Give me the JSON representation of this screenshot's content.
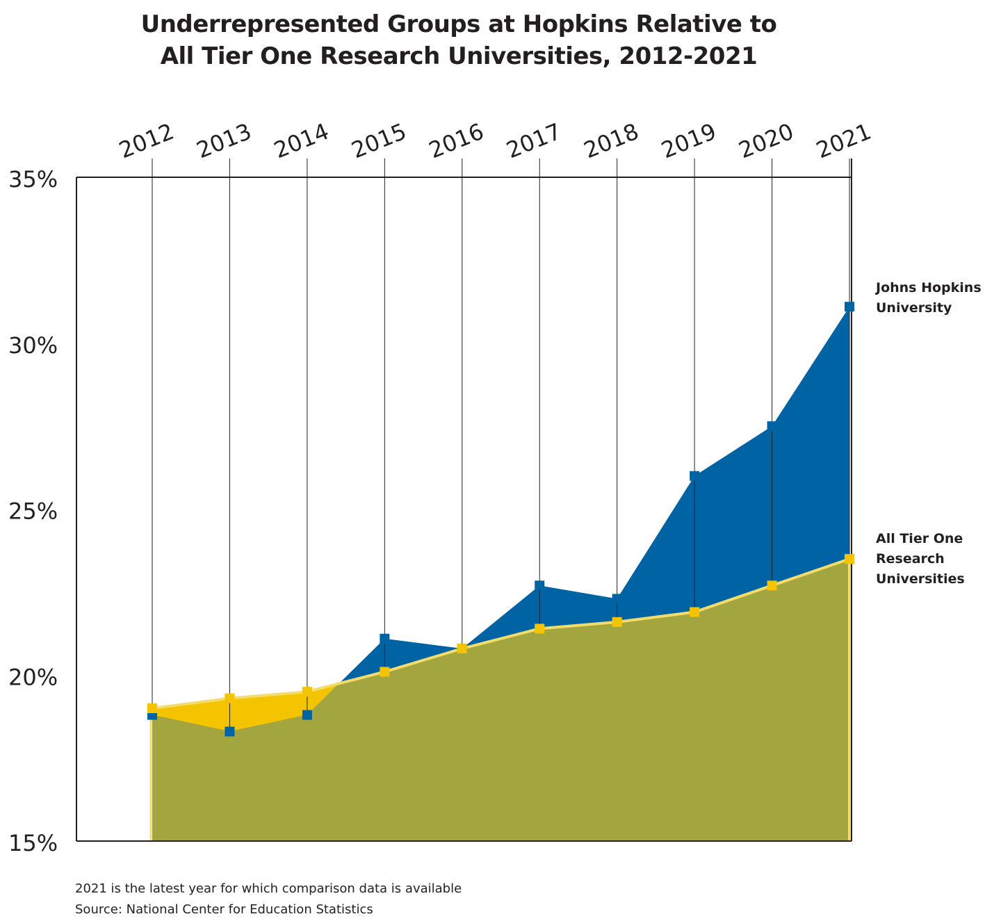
{
  "chart_data": {
    "type": "area",
    "title": "Underrepresented Groups at Hopkins Relative to All Tier One Research Universities, 2012-2021",
    "title_lines": [
      "Underrepresented Groups at Hopkins Relative to",
      "All Tier One Research Universities, 2012-2021"
    ],
    "x": [
      "2012",
      "2013",
      "2014",
      "2015",
      "2016",
      "2017",
      "2018",
      "2019",
      "2020",
      "2021"
    ],
    "y_ticks": [
      "15%",
      "20%",
      "25%",
      "30%",
      "35%"
    ],
    "y_tick_values": [
      15,
      20,
      25,
      30,
      35
    ],
    "ylim": [
      15,
      35
    ],
    "grid": "vertical lines at each year",
    "series": [
      {
        "name": "Johns Hopkins University",
        "label_lines": [
          "Johns Hopkins",
          "University"
        ],
        "color": "#0064a4",
        "values": [
          18.8,
          18.3,
          18.8,
          21.1,
          20.8,
          22.7,
          22.3,
          26.0,
          27.5,
          31.1
        ]
      },
      {
        "name": "All Tier One Research Universities",
        "label_lines": [
          "All Tier One",
          "Research",
          "Universities"
        ],
        "color": "#f5c400",
        "values": [
          19.0,
          19.3,
          19.5,
          20.1,
          20.8,
          21.4,
          21.6,
          21.9,
          22.7,
          23.5
        ]
      }
    ],
    "overlap_color": "#a3a63f",
    "notes": [
      "2021 is the latest year for which comparison data is available",
      "Source: National Center for Education Statistics"
    ]
  }
}
